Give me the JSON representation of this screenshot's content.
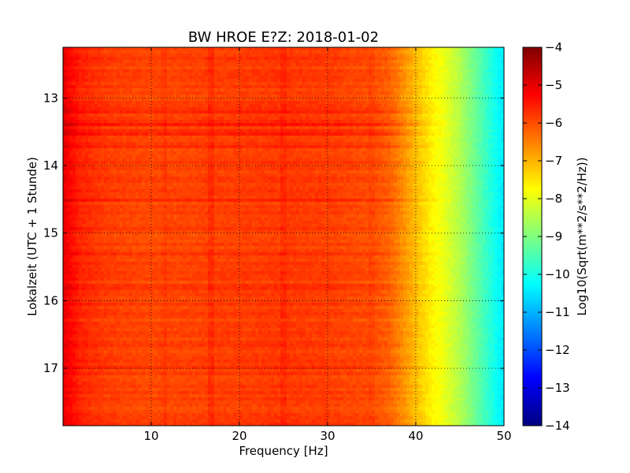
{
  "chart_data": {
    "type": "heatmap",
    "title": "BW HROE E?Z: 2018-01-02",
    "xlabel": "Frequency [Hz]",
    "ylabel": "Lokalzeit (UTC + 1 Stunde)",
    "xlim": [
      0,
      50
    ],
    "ylim": [
      12.25,
      17.85
    ],
    "y_inverted": true,
    "xticks": [
      10,
      20,
      30,
      40,
      50
    ],
    "yticks": [
      13,
      14,
      15,
      16,
      17
    ],
    "grid": true,
    "colormap": "jet",
    "colorbar": {
      "label": "Log10(Sqrt(m**2/s**2/Hz))",
      "range": [
        -14,
        -4
      ],
      "ticks": [
        -4,
        -5,
        -6,
        -7,
        -8,
        -9,
        -10,
        -11,
        -12,
        -13,
        -14
      ]
    },
    "frequency_profile": {
      "freq_hz": [
        0,
        0.5,
        2,
        5,
        10,
        15,
        20,
        25,
        30,
        35,
        37,
        38,
        39,
        40,
        41,
        42,
        43,
        44,
        45,
        46,
        47,
        48,
        49,
        50
      ],
      "log10_amplitude": [
        -5.0,
        -5.2,
        -5.6,
        -5.85,
        -5.95,
        -5.9,
        -5.85,
        -5.8,
        -5.85,
        -6.0,
        -6.2,
        -6.5,
        -6.8,
        -7.1,
        -7.4,
        -7.7,
        -7.9,
        -8.2,
        -8.5,
        -8.9,
        -9.3,
        -9.7,
        -10.1,
        -10.5
      ]
    },
    "time_bands": [
      {
        "time": 13.2,
        "delta": 0.45
      },
      {
        "time": 13.38,
        "delta": 0.65
      },
      {
        "time": 13.52,
        "delta": 0.35
      },
      {
        "time": 13.72,
        "delta": 0.3
      },
      {
        "time": 14.5,
        "delta": 0.35
      },
      {
        "time": 15.3,
        "delta": 0.25
      },
      {
        "time": 15.8,
        "delta": 0.3
      },
      {
        "time": 17.0,
        "delta": 0.2
      }
    ],
    "frequency_lines": [
      {
        "freq": 16.8,
        "delta": 0.35
      },
      {
        "freq": 25.0,
        "delta": 0.25
      },
      {
        "freq": 11.5,
        "delta": 0.15
      },
      {
        "freq": 35.0,
        "delta": 0.15
      }
    ]
  }
}
